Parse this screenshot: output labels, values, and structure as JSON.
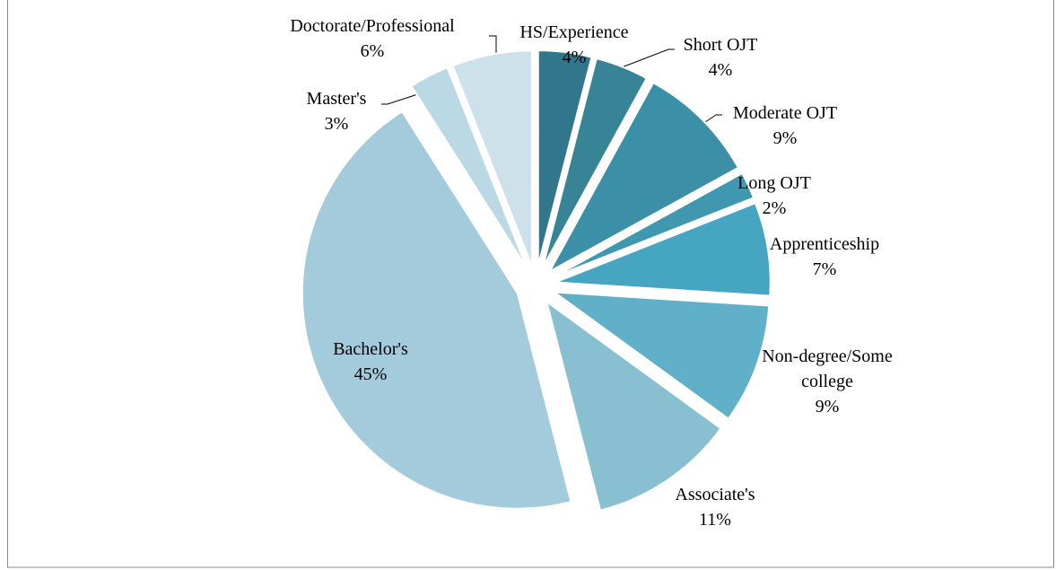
{
  "chart_data": {
    "type": "pie",
    "exploded": true,
    "categories": [
      "HS/Experience",
      "Short OJT",
      "Moderate OJT",
      "Long OJT",
      "Apprenticeship",
      "Non-degree/Some college",
      "Associate's",
      "Bachelor's",
      "Master's",
      "Doctorate/Professional"
    ],
    "values": [
      4,
      4,
      9,
      2,
      7,
      9,
      11,
      45,
      3,
      6
    ],
    "value_labels": [
      "4%",
      "4%",
      "9%",
      "2%",
      "7%",
      "9%",
      "11%",
      "45%",
      "3%",
      "6%"
    ],
    "colors": [
      "#31768a",
      "#368496",
      "#3b8fa6",
      "#3f98b0",
      "#46a6c2",
      "#61b0c9",
      "#88bfd1",
      "#a3cbdb",
      "#bbd8e5",
      "#cde1eb"
    ]
  }
}
